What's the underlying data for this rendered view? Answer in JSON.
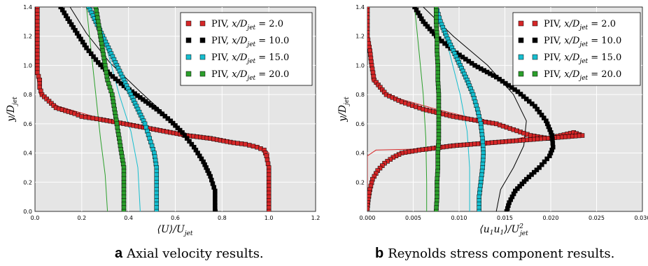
{
  "chart_data": [
    {
      "type": "scatter",
      "xlabel": "⟨U⟩/U_jet",
      "ylabel": "y/D_jet",
      "xlim": [
        0,
        1.2
      ],
      "ylim": [
        0,
        1.4
      ],
      "xticks": [
        "0.0",
        "0.2",
        "0.4",
        "0.6",
        "0.8",
        "1.0",
        "1.2"
      ],
      "yticks": [
        "0.0",
        "0.2",
        "0.4",
        "0.6",
        "0.8",
        "1.0",
        "1.2",
        "1.4"
      ],
      "grid": true,
      "legend_position": "top-right",
      "caption_letter": "a",
      "caption_text": "Axial velocity results.",
      "series": [
        {
          "name": "PIV,  x/D_jet = 2.0",
          "color": "#d62728",
          "points": [
            [
              0.01,
              1.4
            ],
            [
              0.01,
              1.3
            ],
            [
              0.01,
              1.2
            ],
            [
              0.01,
              1.1
            ],
            [
              0.01,
              1.0
            ],
            [
              0.01,
              0.95
            ],
            [
              0.02,
              0.9
            ],
            [
              0.02,
              0.85
            ],
            [
              0.03,
              0.8
            ],
            [
              0.05,
              0.77
            ],
            [
              0.07,
              0.74
            ],
            [
              0.09,
              0.71
            ],
            [
              0.13,
              0.69
            ],
            [
              0.17,
              0.67
            ],
            [
              0.2,
              0.65
            ],
            [
              0.28,
              0.63
            ],
            [
              0.35,
              0.61
            ],
            [
              0.45,
              0.58
            ],
            [
              0.55,
              0.55
            ],
            [
              0.65,
              0.52
            ],
            [
              0.75,
              0.5
            ],
            [
              0.85,
              0.47
            ],
            [
              0.9,
              0.46
            ],
            [
              0.95,
              0.44
            ],
            [
              0.98,
              0.42
            ],
            [
              0.99,
              0.38
            ],
            [
              1.0,
              0.3
            ],
            [
              1.0,
              0.2
            ],
            [
              1.0,
              0.1
            ],
            [
              1.0,
              0.0
            ]
          ],
          "model": [
            [
              0.01,
              1.4
            ],
            [
              0.01,
              0.9
            ],
            [
              0.02,
              0.8
            ],
            [
              0.1,
              0.72
            ],
            [
              0.25,
              0.65
            ],
            [
              0.5,
              0.57
            ],
            [
              0.7,
              0.5
            ],
            [
              0.9,
              0.45
            ],
            [
              0.98,
              0.43
            ],
            [
              1.0,
              0.4
            ],
            [
              1.0,
              0.0
            ]
          ]
        },
        {
          "name": "PIV,  x/D_jet = 10.0",
          "color": "#000000",
          "points": [
            [
              0.11,
              1.4
            ],
            [
              0.14,
              1.32
            ],
            [
              0.18,
              1.22
            ],
            [
              0.22,
              1.12
            ],
            [
              0.27,
              1.02
            ],
            [
              0.32,
              0.94
            ],
            [
              0.38,
              0.86
            ],
            [
              0.45,
              0.78
            ],
            [
              0.52,
              0.7
            ],
            [
              0.58,
              0.62
            ],
            [
              0.63,
              0.54
            ],
            [
              0.68,
              0.44
            ],
            [
              0.72,
              0.34
            ],
            [
              0.75,
              0.24
            ],
            [
              0.77,
              0.14
            ],
            [
              0.77,
              0.06
            ],
            [
              0.77,
              0.0
            ]
          ],
          "model": [
            [
              0.15,
              1.4
            ],
            [
              0.22,
              1.22
            ],
            [
              0.32,
              1.02
            ],
            [
              0.45,
              0.82
            ],
            [
              0.6,
              0.6
            ],
            [
              0.7,
              0.4
            ],
            [
              0.76,
              0.2
            ],
            [
              0.78,
              0.0
            ]
          ]
        },
        {
          "name": "PIV,  x/D_jet = 15.0",
          "color": "#17becf",
          "points": [
            [
              0.23,
              1.4
            ],
            [
              0.26,
              1.3
            ],
            [
              0.29,
              1.2
            ],
            [
              0.32,
              1.1
            ],
            [
              0.35,
              1.0
            ],
            [
              0.38,
              0.9
            ],
            [
              0.41,
              0.8
            ],
            [
              0.44,
              0.7
            ],
            [
              0.47,
              0.6
            ],
            [
              0.49,
              0.5
            ],
            [
              0.51,
              0.4
            ],
            [
              0.52,
              0.3
            ],
            [
              0.52,
              0.2
            ],
            [
              0.52,
              0.1
            ],
            [
              0.52,
              0.0
            ]
          ],
          "model": [
            [
              0.26,
              1.4
            ],
            [
              0.31,
              1.1
            ],
            [
              0.36,
              0.8
            ],
            [
              0.41,
              0.55
            ],
            [
              0.44,
              0.3
            ],
            [
              0.45,
              0.0
            ]
          ]
        },
        {
          "name": "PIV,  x/D_jet = 20.0",
          "color": "#2ca02c",
          "points": [
            [
              0.26,
              1.4
            ],
            [
              0.27,
              1.3
            ],
            [
              0.28,
              1.2
            ],
            [
              0.29,
              1.1
            ],
            [
              0.3,
              1.0
            ],
            [
              0.31,
              0.9
            ],
            [
              0.33,
              0.8
            ],
            [
              0.34,
              0.7
            ],
            [
              0.35,
              0.6
            ],
            [
              0.36,
              0.5
            ],
            [
              0.37,
              0.4
            ],
            [
              0.38,
              0.3
            ],
            [
              0.38,
              0.2
            ],
            [
              0.38,
              0.1
            ],
            [
              0.38,
              0.0
            ]
          ],
          "model": [
            [
              0.22,
              1.4
            ],
            [
              0.24,
              1.1
            ],
            [
              0.26,
              0.8
            ],
            [
              0.28,
              0.5
            ],
            [
              0.3,
              0.25
            ],
            [
              0.31,
              0.0
            ]
          ]
        }
      ]
    },
    {
      "type": "scatter",
      "xlabel": "⟨u1u1⟩/U_jet²",
      "ylabel": "y/D_jet",
      "xlim": [
        0,
        0.032
      ],
      "ylim": [
        0,
        1.4
      ],
      "xticks": [
        "0.000",
        "0.005",
        "0.010",
        "0.015",
        "0.020",
        "0.025",
        "0.030"
      ],
      "yticks": [
        "0.2",
        "0.4",
        "0.6",
        "0.8",
        "1.0",
        "1.2",
        "1.4"
      ],
      "grid": true,
      "legend_position": "top-right",
      "caption_letter": "b",
      "caption_text": "Reynolds stress component results.",
      "series": [
        {
          "name": "PIV,  x/D_jet = 2.0",
          "color": "#d62728",
          "points": [
            [
              0.0,
              1.4
            ],
            [
              0.0,
              1.3
            ],
            [
              0.0,
              1.2
            ],
            [
              0.0003,
              1.1
            ],
            [
              0.0005,
              1.0
            ],
            [
              0.0008,
              0.9
            ],
            [
              0.0015,
              0.85
            ],
            [
              0.0022,
              0.8
            ],
            [
              0.004,
              0.75
            ],
            [
              0.0065,
              0.7
            ],
            [
              0.01,
              0.65
            ],
            [
              0.015,
              0.6
            ],
            [
              0.019,
              0.52
            ],
            [
              0.021,
              0.5
            ],
            [
              0.024,
              0.54
            ],
            [
              0.025,
              0.52
            ],
            [
              0.01,
              0.45
            ],
            [
              0.006,
              0.42
            ],
            [
              0.004,
              0.4
            ],
            [
              0.003,
              0.37
            ],
            [
              0.002,
              0.33
            ],
            [
              0.0012,
              0.28
            ],
            [
              0.0006,
              0.22
            ],
            [
              0.0003,
              0.15
            ],
            [
              0.0001,
              0.08
            ],
            [
              0.0,
              0.02
            ]
          ],
          "model": [
            [
              0.0,
              1.4
            ],
            [
              0.0005,
              0.9
            ],
            [
              0.002,
              0.8
            ],
            [
              0.008,
              0.7
            ],
            [
              0.015,
              0.6
            ],
            [
              0.019,
              0.52
            ],
            [
              0.015,
              0.46
            ],
            [
              0.008,
              0.43
            ],
            [
              0.001,
              0.42
            ],
            [
              0.0,
              0.38
            ],
            [
              0.0,
              0.0
            ]
          ]
        },
        {
          "name": "PIV,  x/D_jet = 10.0",
          "color": "#000000",
          "points": [
            [
              0.0055,
              1.4
            ],
            [
              0.0065,
              1.3
            ],
            [
              0.008,
              1.2
            ],
            [
              0.01,
              1.1
            ],
            [
              0.0125,
              1.0
            ],
            [
              0.015,
              0.92
            ],
            [
              0.0175,
              0.82
            ],
            [
              0.0195,
              0.72
            ],
            [
              0.0208,
              0.62
            ],
            [
              0.0215,
              0.52
            ],
            [
              0.0216,
              0.44
            ],
            [
              0.0212,
              0.38
            ],
            [
              0.02,
              0.3
            ],
            [
              0.0185,
              0.22
            ],
            [
              0.0172,
              0.14
            ],
            [
              0.0165,
              0.06
            ],
            [
              0.0162,
              0.0
            ]
          ],
          "model": [
            [
              0.0065,
              1.4
            ],
            [
              0.01,
              1.2
            ],
            [
              0.014,
              1.0
            ],
            [
              0.017,
              0.8
            ],
            [
              0.0185,
              0.62
            ],
            [
              0.0182,
              0.45
            ],
            [
              0.017,
              0.3
            ],
            [
              0.0155,
              0.15
            ],
            [
              0.015,
              0.0
            ]
          ]
        },
        {
          "name": "PIV,  x/D_jet = 15.0",
          "color": "#17becf",
          "points": [
            [
              0.008,
              1.4
            ],
            [
              0.0085,
              1.3
            ],
            [
              0.0092,
              1.2
            ],
            [
              0.01,
              1.1
            ],
            [
              0.0108,
              1.0
            ],
            [
              0.0116,
              0.9
            ],
            [
              0.0123,
              0.8
            ],
            [
              0.0128,
              0.7
            ],
            [
              0.0132,
              0.6
            ],
            [
              0.0134,
              0.5
            ],
            [
              0.0135,
              0.4
            ],
            [
              0.0134,
              0.3
            ],
            [
              0.0132,
              0.2
            ],
            [
              0.013,
              0.1
            ],
            [
              0.013,
              0.0
            ]
          ],
          "model": [
            [
              0.0082,
              1.4
            ],
            [
              0.0095,
              1.1
            ],
            [
              0.0108,
              0.8
            ],
            [
              0.0116,
              0.55
            ],
            [
              0.0119,
              0.3
            ],
            [
              0.0119,
              0.0
            ]
          ]
        },
        {
          "name": "PIV,  x/D_jet = 20.0",
          "color": "#2ca02c",
          "points": [
            [
              0.008,
              1.4
            ],
            [
              0.008,
              1.3
            ],
            [
              0.0081,
              1.2
            ],
            [
              0.0081,
              1.1
            ],
            [
              0.0082,
              1.0
            ],
            [
              0.0082,
              0.9
            ],
            [
              0.0083,
              0.8
            ],
            [
              0.0083,
              0.7
            ],
            [
              0.0083,
              0.6
            ],
            [
              0.0083,
              0.5
            ],
            [
              0.0082,
              0.4
            ],
            [
              0.0082,
              0.3
            ],
            [
              0.0081,
              0.2
            ],
            [
              0.0081,
              0.1
            ],
            [
              0.008,
              0.0
            ]
          ],
          "model": [
            [
              0.0055,
              1.4
            ],
            [
              0.006,
              1.1
            ],
            [
              0.0065,
              0.8
            ],
            [
              0.0068,
              0.5
            ],
            [
              0.0069,
              0.2
            ],
            [
              0.0069,
              0.0
            ]
          ]
        }
      ]
    }
  ]
}
